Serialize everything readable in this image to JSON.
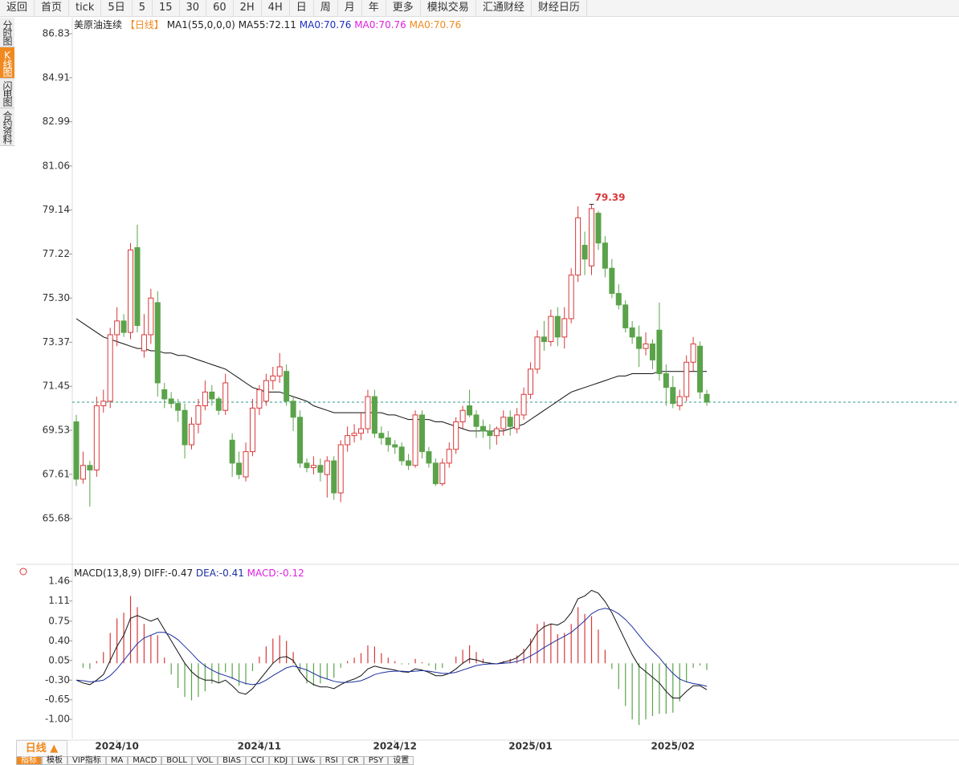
{
  "toolbar": [
    "返回",
    "首页",
    "tick",
    "5日",
    "5",
    "15",
    "30",
    "60",
    "2H",
    "4H",
    "日",
    "周",
    "月",
    "年",
    "更多",
    "模拟交易",
    "汇通财经",
    "财经日历"
  ],
  "sidebar": [
    "分时图",
    "K线图",
    "闪电图",
    "合约资料"
  ],
  "bottom_bar": {
    "period": "日线 ▲",
    "tabs": [
      "指标",
      "模板",
      "VIP指标",
      "MA",
      "MACD",
      "BOLL",
      "VOL",
      "BIAS",
      "CCI",
      "KDJ",
      "LW&",
      "RSI",
      "CR",
      "PSY",
      "设置"
    ]
  },
  "chart_data": {
    "type": "candlestick",
    "title": "美原油连续",
    "period": "【日线】",
    "ma_header": "MA1(55,0,0,0)",
    "legend": [
      {
        "text": "MA55:72.11",
        "color": "#222"
      },
      {
        "text": "MA0:70.76",
        "color": "#1c2fc0"
      },
      {
        "text": "MA0:70.76",
        "color": "#e020e0"
      },
      {
        "text": "MA0:70.76",
        "color": "#f08a20"
      }
    ],
    "up_color": "#d9383a",
    "down_color": "#5aa34a",
    "ma_color": "#111",
    "ylim": [
      63.79,
      87.53
    ],
    "yticks": [
      86.83,
      84.91,
      82.99,
      81.06,
      79.14,
      77.22,
      {
        "value": 75.3,
        "label": "75.30"
      },
      73.37,
      71.45,
      69.53,
      67.61,
      65.68
    ],
    "xticks": [
      {
        "value": 6,
        "label": "2024/10"
      },
      {
        "value": 27,
        "label": "2024/11"
      },
      {
        "value": 47,
        "label": "2024/12"
      },
      {
        "value": 67,
        "label": "2025/01"
      },
      {
        "value": 88,
        "label": "2025/02"
      }
    ],
    "peak_label": 79.39,
    "ohlc": [
      [
        69.9,
        70.2,
        67.1,
        67.4
      ],
      [
        67.4,
        68.6,
        67.2,
        68.0
      ],
      [
        68.0,
        68.2,
        66.2,
        67.8
      ],
      [
        67.8,
        71.0,
        67.5,
        70.6
      ],
      [
        70.6,
        71.3,
        70.3,
        70.8
      ],
      [
        70.8,
        74.0,
        70.5,
        73.7
      ],
      [
        73.7,
        74.9,
        73.2,
        74.3
      ],
      [
        74.3,
        74.6,
        73.6,
        73.8
      ],
      [
        73.8,
        77.7,
        73.5,
        77.4
      ],
      [
        77.5,
        78.5,
        73.8,
        74.1
      ],
      [
        73.0,
        74.6,
        72.7,
        73.7
      ],
      [
        73.7,
        75.7,
        73.3,
        75.3
      ],
      [
        75.1,
        75.6,
        71.0,
        71.6
      ],
      [
        71.3,
        71.6,
        70.5,
        70.9
      ],
      [
        70.9,
        71.2,
        70.5,
        70.7
      ],
      [
        70.7,
        70.9,
        69.9,
        70.4
      ],
      [
        70.4,
        70.7,
        68.3,
        68.9
      ],
      [
        68.9,
        70.1,
        68.7,
        69.8
      ],
      [
        69.8,
        70.9,
        69.4,
        70.6
      ],
      [
        70.6,
        71.7,
        70.4,
        71.2
      ],
      [
        71.2,
        71.5,
        70.6,
        70.9
      ],
      [
        70.9,
        71.0,
        70.2,
        70.4
      ],
      [
        70.4,
        72.0,
        70.2,
        71.6
      ],
      [
        69.1,
        69.4,
        67.5,
        68.1
      ],
      [
        68.1,
        68.6,
        67.4,
        67.6
      ],
      [
        67.5,
        69.0,
        67.3,
        68.6
      ],
      [
        68.6,
        70.9,
        68.4,
        70.5
      ],
      [
        70.5,
        71.5,
        70.2,
        71.3
      ],
      [
        70.8,
        72.0,
        70.6,
        71.7
      ],
      [
        71.7,
        72.3,
        71.3,
        71.9
      ],
      [
        71.9,
        72.9,
        71.6,
        72.3
      ],
      [
        72.1,
        72.4,
        70.6,
        70.8
      ],
      [
        70.8,
        71.0,
        69.5,
        70.1
      ],
      [
        70.1,
        70.4,
        67.9,
        68.1
      ],
      [
        68.1,
        68.3,
        67.7,
        67.9
      ],
      [
        67.9,
        68.4,
        67.6,
        68.0
      ],
      [
        68.0,
        68.3,
        67.3,
        67.7
      ],
      [
        67.6,
        68.4,
        66.6,
        68.2
      ],
      [
        68.2,
        68.4,
        66.5,
        66.8
      ],
      [
        66.8,
        69.1,
        66.4,
        68.9
      ],
      [
        68.9,
        69.7,
        68.6,
        69.3
      ],
      [
        69.3,
        69.8,
        69.0,
        69.4
      ],
      [
        69.4,
        70.3,
        69.1,
        69.6
      ],
      [
        69.6,
        71.3,
        69.4,
        71.0
      ],
      [
        71.0,
        71.3,
        69.2,
        69.4
      ],
      [
        69.4,
        69.7,
        68.9,
        69.2
      ],
      [
        69.2,
        69.5,
        68.6,
        68.9
      ],
      [
        68.9,
        69.1,
        68.5,
        68.8
      ],
      [
        68.8,
        69.0,
        68.0,
        68.2
      ],
      [
        68.2,
        68.5,
        67.8,
        68.0
      ],
      [
        68.0,
        70.4,
        67.9,
        70.2
      ],
      [
        70.2,
        70.4,
        68.3,
        68.6
      ],
      [
        68.6,
        68.8,
        67.9,
        68.1
      ],
      [
        68.1,
        68.3,
        67.1,
        67.2
      ],
      [
        67.2,
        68.3,
        67.1,
        68.1
      ],
      [
        68.1,
        69.0,
        67.9,
        68.7
      ],
      [
        68.7,
        70.1,
        68.5,
        69.9
      ],
      [
        69.9,
        70.6,
        69.6,
        70.4
      ],
      [
        70.6,
        71.3,
        70.1,
        70.2
      ],
      [
        70.2,
        70.4,
        69.2,
        69.7
      ],
      [
        69.7,
        70.0,
        69.2,
        69.5
      ],
      [
        69.5,
        69.8,
        68.7,
        69.3
      ],
      [
        69.3,
        69.7,
        68.9,
        69.6
      ],
      [
        69.6,
        70.4,
        69.3,
        70.1
      ],
      [
        70.1,
        70.4,
        69.3,
        69.7
      ],
      [
        69.6,
        70.5,
        69.4,
        70.2
      ],
      [
        70.2,
        71.4,
        70.0,
        71.1
      ],
      [
        71.1,
        72.5,
        70.9,
        72.2
      ],
      [
        72.2,
        73.9,
        72.0,
        73.6
      ],
      [
        73.6,
        74.3,
        73.0,
        73.4
      ],
      [
        73.4,
        74.8,
        73.2,
        74.5
      ],
      [
        74.5,
        74.9,
        73.2,
        73.6
      ],
      [
        73.6,
        74.9,
        73.1,
        74.4
      ],
      [
        74.4,
        76.6,
        74.2,
        76.3
      ],
      [
        76.3,
        79.3,
        76.0,
        78.8
      ],
      [
        77.6,
        78.2,
        76.3,
        77.0
      ],
      [
        76.7,
        79.39,
        76.3,
        79.2
      ],
      [
        79.0,
        79.1,
        77.4,
        77.7
      ],
      [
        77.7,
        78.0,
        76.2,
        76.6
      ],
      [
        76.6,
        77.0,
        75.3,
        75.5
      ],
      [
        75.5,
        75.9,
        74.8,
        75.0
      ],
      [
        75.0,
        75.2,
        73.8,
        74.0
      ],
      [
        74.0,
        74.3,
        73.3,
        73.6
      ],
      [
        73.6,
        74.1,
        72.3,
        73.1
      ],
      [
        73.1,
        73.8,
        72.8,
        73.3
      ],
      [
        73.3,
        73.5,
        72.2,
        72.6
      ],
      [
        73.9,
        75.1,
        71.7,
        72.0
      ],
      [
        72.0,
        72.4,
        70.6,
        71.4
      ],
      [
        71.4,
        71.9,
        70.5,
        70.7
      ],
      [
        70.6,
        71.3,
        70.4,
        71.0
      ],
      [
        71.0,
        72.8,
        70.8,
        72.5
      ],
      [
        72.5,
        73.6,
        72.1,
        73.3
      ],
      [
        73.2,
        73.4,
        70.9,
        71.2
      ],
      [
        71.1,
        71.3,
        70.6,
        70.76
      ]
    ],
    "ma55": [
      74.4,
      74.2,
      74.0,
      73.8,
      73.6,
      73.5,
      73.4,
      73.3,
      73.2,
      73.1,
      73.1,
      73.0,
      73.0,
      72.9,
      72.9,
      72.8,
      72.8,
      72.7,
      72.6,
      72.5,
      72.4,
      72.3,
      72.2,
      72.0,
      71.8,
      71.6,
      71.4,
      71.3,
      71.2,
      71.2,
      71.2,
      71.1,
      71.0,
      70.9,
      70.8,
      70.6,
      70.5,
      70.4,
      70.3,
      70.3,
      70.3,
      70.3,
      70.3,
      70.3,
      70.3,
      70.3,
      70.2,
      70.2,
      70.1,
      70.0,
      70.0,
      70.0,
      70.0,
      69.9,
      69.9,
      69.8,
      69.7,
      69.6,
      69.5,
      69.5,
      69.5,
      69.5,
      69.5,
      69.5,
      69.6,
      69.7,
      69.8,
      70.0,
      70.2,
      70.4,
      70.6,
      70.8,
      71.0,
      71.2,
      71.3,
      71.4,
      71.5,
      71.6,
      71.7,
      71.8,
      71.9,
      71.9,
      72.0,
      72.0,
      72.0,
      72.0,
      72.1,
      72.1,
      72.1,
      72.1,
      72.1,
      72.1,
      72.1,
      72.1
    ],
    "macd": {
      "header": "MACD(13,8,9)",
      "labels": [
        {
          "text": "DIFF:-0.47",
          "color": "#222"
        },
        {
          "text": "DEA:-0.41",
          "color": "#1c2fa0"
        },
        {
          "text": "MACD:-0.12",
          "color": "#e020e0"
        }
      ],
      "ylim": [
        -1.34,
        1.72
      ],
      "yticks": [
        1.46,
        1.11,
        0.75,
        {
          "value": 0.4,
          "label": "0.40"
        },
        0.05,
        {
          "value": -0.3,
          "label": "-0.30"
        },
        -0.65,
        {
          "value": -1.0,
          "label": "-1.00"
        }
      ],
      "diff": [
        -0.3,
        -0.35,
        -0.38,
        -0.3,
        -0.2,
        0.05,
        0.3,
        0.5,
        0.8,
        0.85,
        0.8,
        0.75,
        0.8,
        0.6,
        0.4,
        0.2,
        0.0,
        -0.15,
        -0.25,
        -0.3,
        -0.3,
        -0.35,
        -0.3,
        -0.4,
        -0.52,
        -0.55,
        -0.45,
        -0.3,
        -0.15,
        0.0,
        0.1,
        0.12,
        0.05,
        -0.15,
        -0.3,
        -0.38,
        -0.42,
        -0.42,
        -0.45,
        -0.38,
        -0.32,
        -0.28,
        -0.22,
        -0.1,
        -0.05,
        -0.08,
        -0.1,
        -0.12,
        -0.15,
        -0.16,
        -0.1,
        -0.12,
        -0.16,
        -0.22,
        -0.22,
        -0.18,
        -0.1,
        0.0,
        0.08,
        0.06,
        0.02,
        0.0,
        -0.01,
        0.02,
        0.05,
        0.1,
        0.2,
        0.35,
        0.55,
        0.65,
        0.7,
        0.68,
        0.75,
        0.9,
        1.15,
        1.2,
        1.3,
        1.25,
        1.1,
        0.9,
        0.65,
        0.4,
        0.15,
        -0.05,
        -0.15,
        -0.25,
        -0.35,
        -0.5,
        -0.62,
        -0.62,
        -0.5,
        -0.4,
        -0.4,
        -0.47
      ],
      "dea": [
        -0.3,
        -0.31,
        -0.33,
        -0.32,
        -0.3,
        -0.22,
        -0.1,
        0.05,
        0.2,
        0.35,
        0.45,
        0.5,
        0.55,
        0.55,
        0.5,
        0.42,
        0.3,
        0.18,
        0.05,
        -0.05,
        -0.12,
        -0.18,
        -0.22,
        -0.26,
        -0.32,
        -0.36,
        -0.38,
        -0.36,
        -0.3,
        -0.22,
        -0.15,
        -0.08,
        -0.05,
        -0.08,
        -0.12,
        -0.18,
        -0.24,
        -0.28,
        -0.32,
        -0.34,
        -0.34,
        -0.33,
        -0.31,
        -0.26,
        -0.2,
        -0.17,
        -0.15,
        -0.14,
        -0.14,
        -0.15,
        -0.14,
        -0.13,
        -0.14,
        -0.16,
        -0.18,
        -0.18,
        -0.16,
        -0.12,
        -0.08,
        -0.04,
        -0.02,
        -0.01,
        -0.01,
        0.0,
        0.01,
        0.03,
        0.07,
        0.13,
        0.2,
        0.28,
        0.35,
        0.42,
        0.48,
        0.55,
        0.65,
        0.76,
        0.88,
        0.95,
        0.98,
        0.95,
        0.88,
        0.78,
        0.65,
        0.5,
        0.35,
        0.22,
        0.1,
        -0.05,
        -0.18,
        -0.28,
        -0.33,
        -0.36,
        -0.38,
        -0.41
      ],
      "hist": [
        0.0,
        -0.08,
        -0.1,
        0.04,
        0.2,
        0.54,
        0.8,
        0.9,
        1.2,
        1.0,
        0.7,
        0.5,
        0.5,
        0.1,
        -0.2,
        -0.44,
        -0.6,
        -0.66,
        -0.6,
        -0.5,
        -0.36,
        -0.34,
        -0.16,
        -0.28,
        -0.4,
        -0.38,
        -0.14,
        0.12,
        0.3,
        0.44,
        0.5,
        0.4,
        0.2,
        -0.14,
        -0.36,
        -0.4,
        -0.36,
        -0.28,
        -0.26,
        -0.08,
        0.04,
        0.1,
        0.18,
        0.32,
        0.3,
        0.18,
        0.1,
        0.04,
        -0.02,
        -0.02,
        0.08,
        0.02,
        -0.04,
        -0.12,
        -0.08,
        0.0,
        0.12,
        0.24,
        0.32,
        0.2,
        0.08,
        0.02,
        0.0,
        0.04,
        0.08,
        0.14,
        0.26,
        0.44,
        0.7,
        0.74,
        0.7,
        0.52,
        0.54,
        0.7,
        1.0,
        0.88,
        0.84,
        0.6,
        0.24,
        -0.1,
        -0.46,
        -0.76,
        -1.0,
        -1.1,
        -1.0,
        -0.94,
        -0.9,
        -0.9,
        -0.88,
        -0.68,
        -0.34,
        -0.08,
        -0.04,
        -0.12
      ]
    }
  }
}
